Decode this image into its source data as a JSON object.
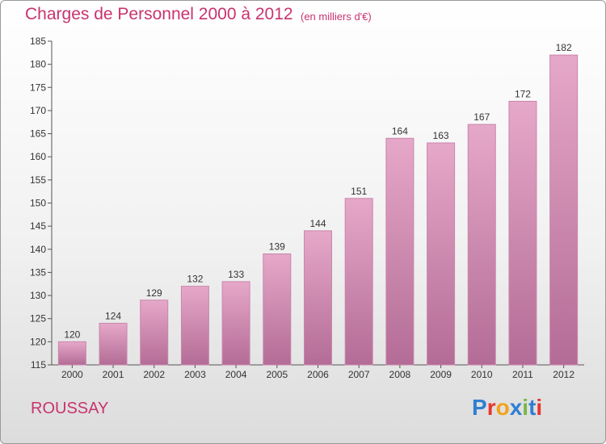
{
  "header": {
    "title": "Charges de Personnel 2000 à 2012",
    "subtitle": "(en milliers d'€)"
  },
  "footer": {
    "commune": "ROUSSAY",
    "logo_letters": [
      "P",
      "r",
      "o",
      "x",
      "i",
      "t",
      "i"
    ],
    "logo_colors": [
      "#2f7fd1",
      "#e8352f",
      "#f2a21b",
      "#2f7fd1",
      "#7ab648",
      "#2f7fd1",
      "#e8352f"
    ]
  },
  "chart_data": {
    "type": "bar",
    "categories": [
      "2000",
      "2001",
      "2002",
      "2003",
      "2004",
      "2005",
      "2006",
      "2007",
      "2008",
      "2009",
      "2010",
      "2011",
      "2012"
    ],
    "values": [
      120,
      124,
      129,
      132,
      133,
      139,
      144,
      151,
      164,
      163,
      167,
      172,
      182
    ],
    "ylim": [
      115,
      185
    ],
    "yticks": [
      115,
      120,
      125,
      130,
      135,
      140,
      145,
      150,
      155,
      160,
      165,
      170,
      175,
      180,
      185
    ],
    "grid": false,
    "bar_color": "#d98fb6"
  }
}
